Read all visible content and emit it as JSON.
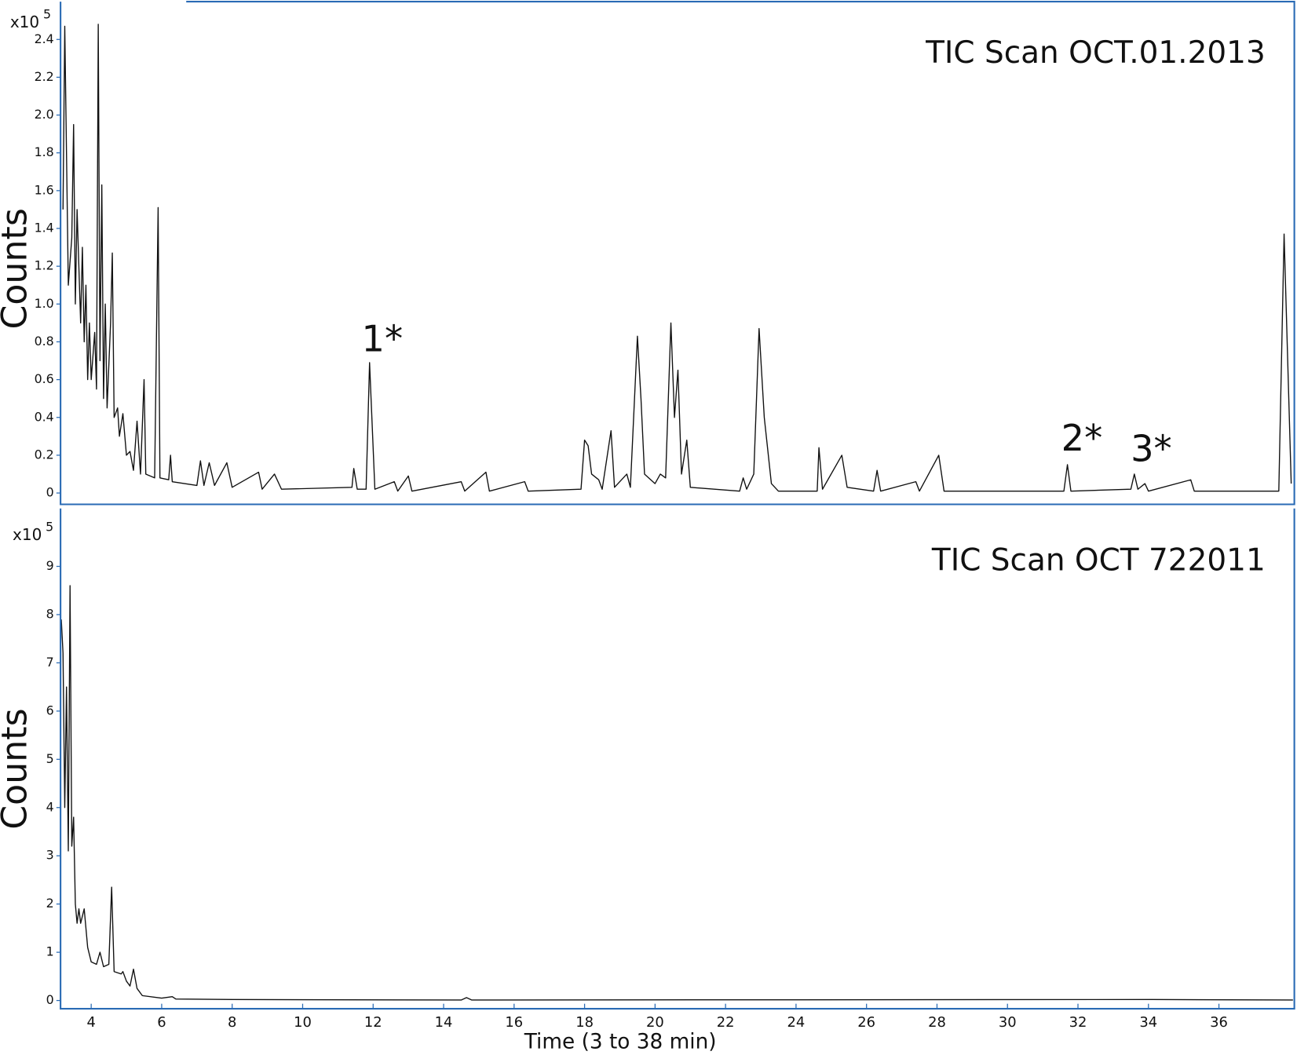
{
  "chart_data": [
    {
      "type": "line",
      "title": "TIC Scan OCT.01.2013",
      "ylabel": "Counts",
      "y_multiplier": "x10",
      "y_exponent": 5,
      "annotations": [
        "1*",
        "2*",
        "3*"
      ],
      "xlim": [
        3.13,
        38.14
      ],
      "ylim": [
        -0.06,
        2.6
      ],
      "yticks": [
        0,
        0.2,
        0.4,
        0.6,
        0.8,
        {
          "value": 1,
          "label": "1.0"
        },
        1.2,
        1.4,
        1.6,
        1.8,
        {
          "value": 2,
          "label": "2.0"
        },
        2.2,
        2.4
      ],
      "color": "#111111",
      "x": [
        3.2,
        3.25,
        3.3,
        3.35,
        3.45,
        3.5,
        3.55,
        3.6,
        3.7,
        3.75,
        3.8,
        3.85,
        3.9,
        3.95,
        4.0,
        4.1,
        4.15,
        4.2,
        4.25,
        4.3,
        4.35,
        4.4,
        4.45,
        4.55,
        4.6,
        4.65,
        4.75,
        4.8,
        4.9,
        5.0,
        5.1,
        5.2,
        5.3,
        5.4,
        5.5,
        5.55,
        5.8,
        5.9,
        5.95,
        6.2,
        6.25,
        6.3,
        7.0,
        7.1,
        7.2,
        7.35,
        7.5,
        7.85,
        8.0,
        8.75,
        8.85,
        9.2,
        9.4,
        11.4,
        11.45,
        11.55,
        11.8,
        11.9,
        12.05,
        12.6,
        12.7,
        13.0,
        13.1,
        14.5,
        14.6,
        15.2,
        15.3,
        16.3,
        16.4,
        17.9,
        18.0,
        18.1,
        18.2,
        18.4,
        18.5,
        18.75,
        18.85,
        19.2,
        19.3,
        19.5,
        19.6,
        19.7,
        20.0,
        20.15,
        20.3,
        20.45,
        20.55,
        20.65,
        20.75,
        20.9,
        21.0,
        22.4,
        22.5,
        22.6,
        22.8,
        22.95,
        23.1,
        23.3,
        23.5,
        24.6,
        24.65,
        24.75,
        25.3,
        25.45,
        26.2,
        26.3,
        26.4,
        27.4,
        27.5,
        28.05,
        28.2,
        31.6,
        31.7,
        31.8,
        33.5,
        33.6,
        33.7,
        33.9,
        34.0,
        35.2,
        35.3,
        37.7,
        37.85,
        38.05
      ],
      "values": [
        1.5,
        2.47,
        1.8,
        1.1,
        1.35,
        1.95,
        1.0,
        1.5,
        0.9,
        1.3,
        0.8,
        1.1,
        0.6,
        0.9,
        0.6,
        0.85,
        0.55,
        2.48,
        0.7,
        1.63,
        0.5,
        1.0,
        0.45,
        0.9,
        1.27,
        0.4,
        0.45,
        0.3,
        0.42,
        0.2,
        0.22,
        0.12,
        0.38,
        0.1,
        0.6,
        0.1,
        0.08,
        1.51,
        0.08,
        0.07,
        0.2,
        0.06,
        0.04,
        0.17,
        0.04,
        0.16,
        0.04,
        0.16,
        0.03,
        0.11,
        0.02,
        0.1,
        0.02,
        0.03,
        0.13,
        0.02,
        0.02,
        0.69,
        0.02,
        0.06,
        0.01,
        0.09,
        0.01,
        0.06,
        0.01,
        0.11,
        0.01,
        0.06,
        0.01,
        0.02,
        0.28,
        0.25,
        0.1,
        0.07,
        0.02,
        0.33,
        0.03,
        0.1,
        0.03,
        0.83,
        0.5,
        0.1,
        0.05,
        0.1,
        0.08,
        0.9,
        0.4,
        0.65,
        0.1,
        0.28,
        0.03,
        0.01,
        0.08,
        0.02,
        0.1,
        0.87,
        0.4,
        0.05,
        0.01,
        0.01,
        0.24,
        0.02,
        0.2,
        0.03,
        0.01,
        0.12,
        0.01,
        0.06,
        0.01,
        0.2,
        0.01,
        0.01,
        0.15,
        0.01,
        0.02,
        0.1,
        0.02,
        0.05,
        0.01,
        0.07,
        0.01,
        0.01,
        1.37,
        0.05
      ]
    },
    {
      "type": "line",
      "title": "TIC Scan OCT 722011",
      "ylabel": "Counts",
      "y_multiplier": "x10",
      "y_exponent": 5,
      "xlabel": "Time (3 to 38 min)",
      "xlim": [
        3.13,
        38.14
      ],
      "ylim": [
        -0.17,
        10.2
      ],
      "xticks": [
        4,
        6,
        8,
        10,
        12,
        14,
        16,
        18,
        20,
        22,
        24,
        26,
        28,
        30,
        32,
        34,
        36
      ],
      "yticks": [
        0,
        1,
        2,
        3,
        4,
        5,
        6,
        7,
        8,
        9
      ],
      "color": "#111111",
      "x": [
        3.15,
        3.2,
        3.25,
        3.3,
        3.35,
        3.4,
        3.45,
        3.5,
        3.55,
        3.6,
        3.65,
        3.7,
        3.8,
        3.9,
        4.0,
        4.15,
        4.25,
        4.35,
        4.5,
        4.58,
        4.65,
        4.85,
        4.9,
        5.0,
        5.1,
        5.2,
        5.3,
        5.45,
        6.0,
        6.3,
        6.4,
        8.0,
        14.5,
        14.65,
        14.8,
        34.1,
        38.1
      ],
      "values": [
        7.9,
        7.2,
        4.0,
        6.5,
        3.1,
        8.6,
        3.2,
        3.8,
        2.0,
        1.6,
        1.9,
        1.6,
        1.9,
        1.1,
        0.8,
        0.75,
        1.0,
        0.7,
        0.75,
        2.35,
        0.6,
        0.55,
        0.6,
        0.4,
        0.3,
        0.65,
        0.25,
        0.1,
        0.05,
        0.08,
        0.03,
        0.02,
        0.01,
        0.06,
        0.01,
        0.02,
        0.01
      ]
    }
  ]
}
